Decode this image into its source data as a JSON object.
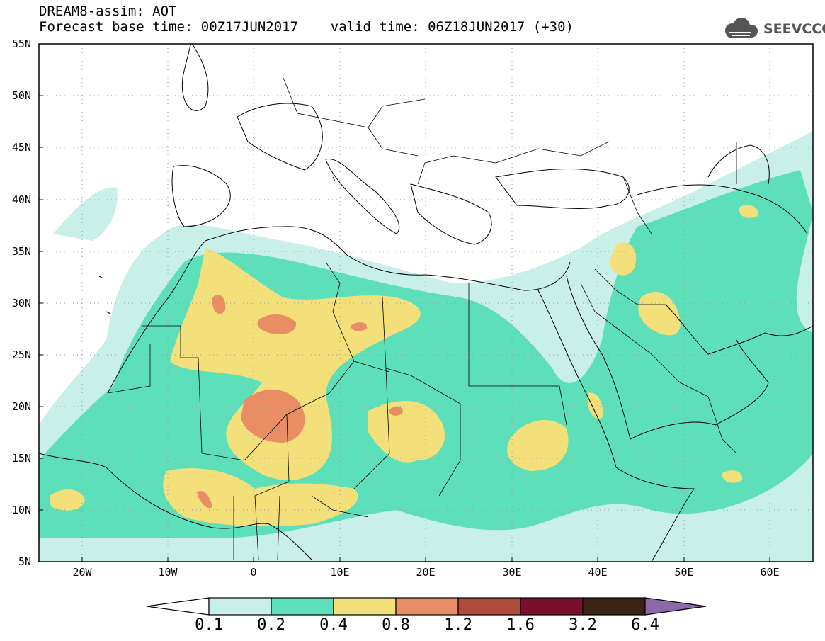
{
  "title": {
    "line1": "DREAM8-assim: AOT",
    "line2": "Forecast base time: 00Z17JUN2017    valid time: 06Z18JUN2017 (+30)"
  },
  "logo": {
    "text": "SEEVCCC",
    "icon": "cloud-icon"
  },
  "map": {
    "lat_labels": [
      "55N",
      "50N",
      "45N",
      "40N",
      "35N",
      "30N",
      "25N",
      "20N",
      "15N",
      "10N",
      "5N"
    ],
    "lon_labels": [
      "20W",
      "10W",
      "0",
      "10E",
      "20E",
      "30E",
      "40E",
      "50E",
      "60E"
    ],
    "lon_range": [
      -25,
      65
    ],
    "lat_range": [
      5,
      55
    ],
    "field": "AOT"
  },
  "colorbar": {
    "labels": [
      "0.1",
      "0.2",
      "0.4",
      "0.8",
      "1.2",
      "1.6",
      "3.2",
      "6.4"
    ],
    "colors": [
      "#ffffff",
      "#c8efe8",
      "#5ddfba",
      "#f3e07a",
      "#e88d64",
      "#b04b3c",
      "#7b0e2b",
      "#3c2414",
      "#8c68a9"
    ]
  }
}
